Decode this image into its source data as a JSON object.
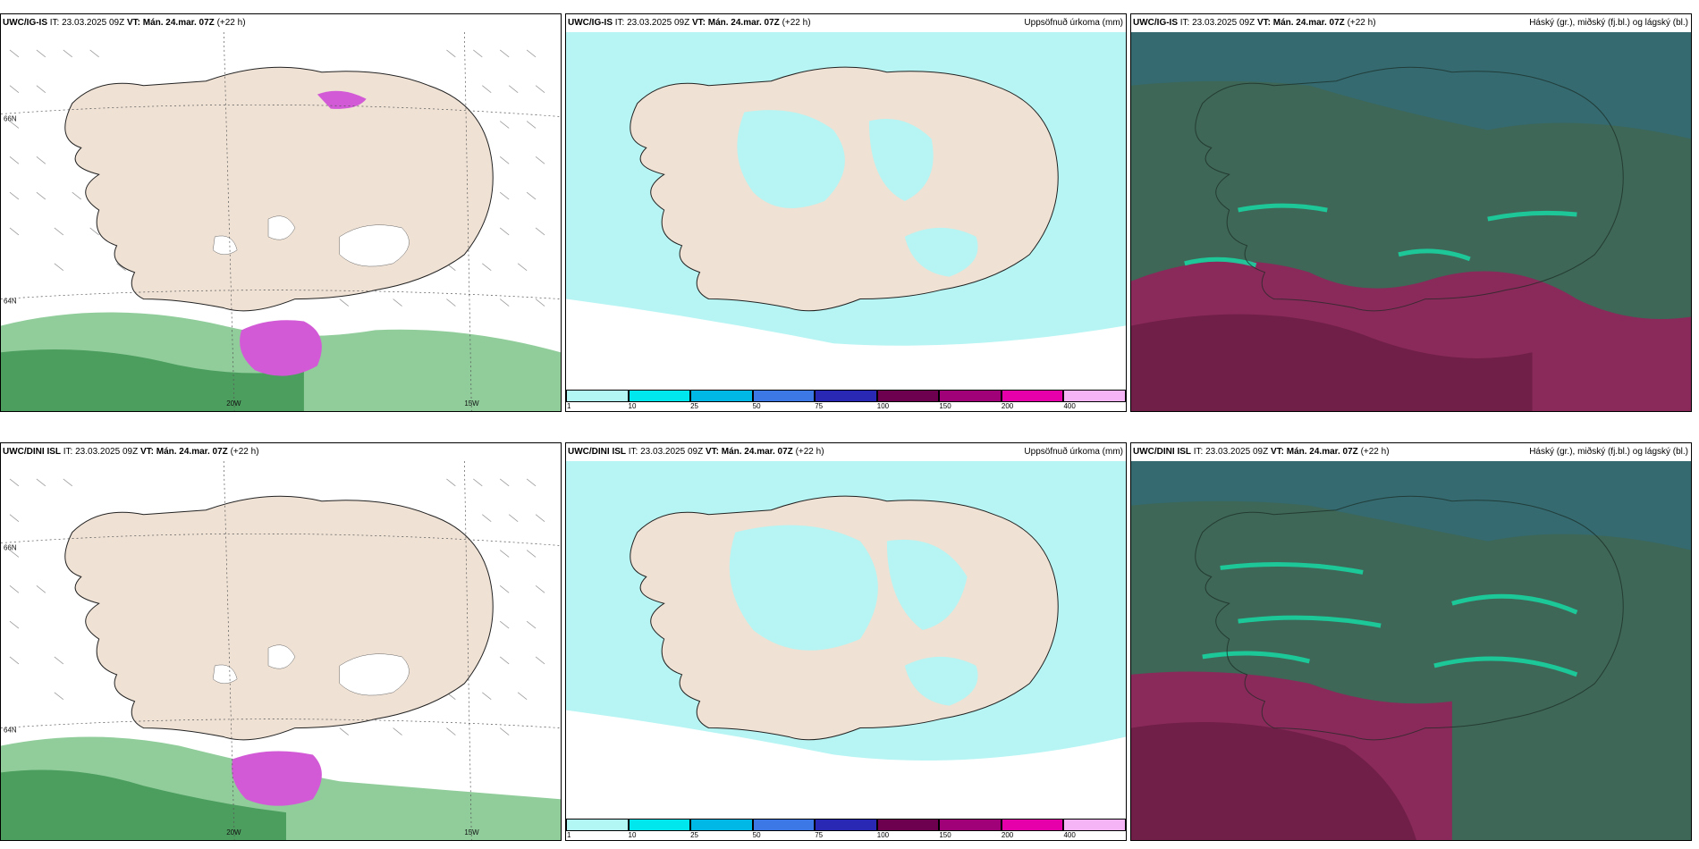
{
  "rows": [
    {
      "model": "UWC/IG-IS",
      "it_label": "IT:",
      "it_value": "23.03.2025 09Z",
      "vt_label": "VT:",
      "vt_value": "Mán. 24.mar. 07Z",
      "lead": "(+22 h)"
    },
    {
      "model": "UWC/DINI ISL",
      "it_label": "IT:",
      "it_value": "23.03.2025 09Z",
      "vt_label": "VT:",
      "vt_value": "Mán. 24.mar. 07Z",
      "lead": "(+22 h)"
    }
  ],
  "panel_titles": {
    "precip": "Uppsöfnuð úrkoma (mm)",
    "clouds": "Háský (gr.), miðský (fj.bl.) og lágský (bl.)"
  },
  "map_labels": {
    "lat_66": "66N",
    "lat_64": "64N",
    "lon_20": "20W",
    "lon_15": "15W"
  },
  "colorbar": {
    "ticks": [
      "1",
      "10",
      "25",
      "50",
      "75",
      "100",
      "150",
      "200",
      "400"
    ],
    "colors": [
      "#b3f7f5",
      "#00e8ee",
      "#00b8e6",
      "#3c78e6",
      "#2828b4",
      "#6e0050",
      "#a00078",
      "#e600aa",
      "#f5b4f5"
    ]
  },
  "colors": {
    "land": "#efe1d4",
    "sea_precip": "#b6f5f3",
    "sea_green": "#7cc48a",
    "snow_magenta": "#d35ad6",
    "cloud_dark": "#3e6757",
    "cloud_purple": "#8a2a5a",
    "cloud_teal": "#19d2a0"
  }
}
